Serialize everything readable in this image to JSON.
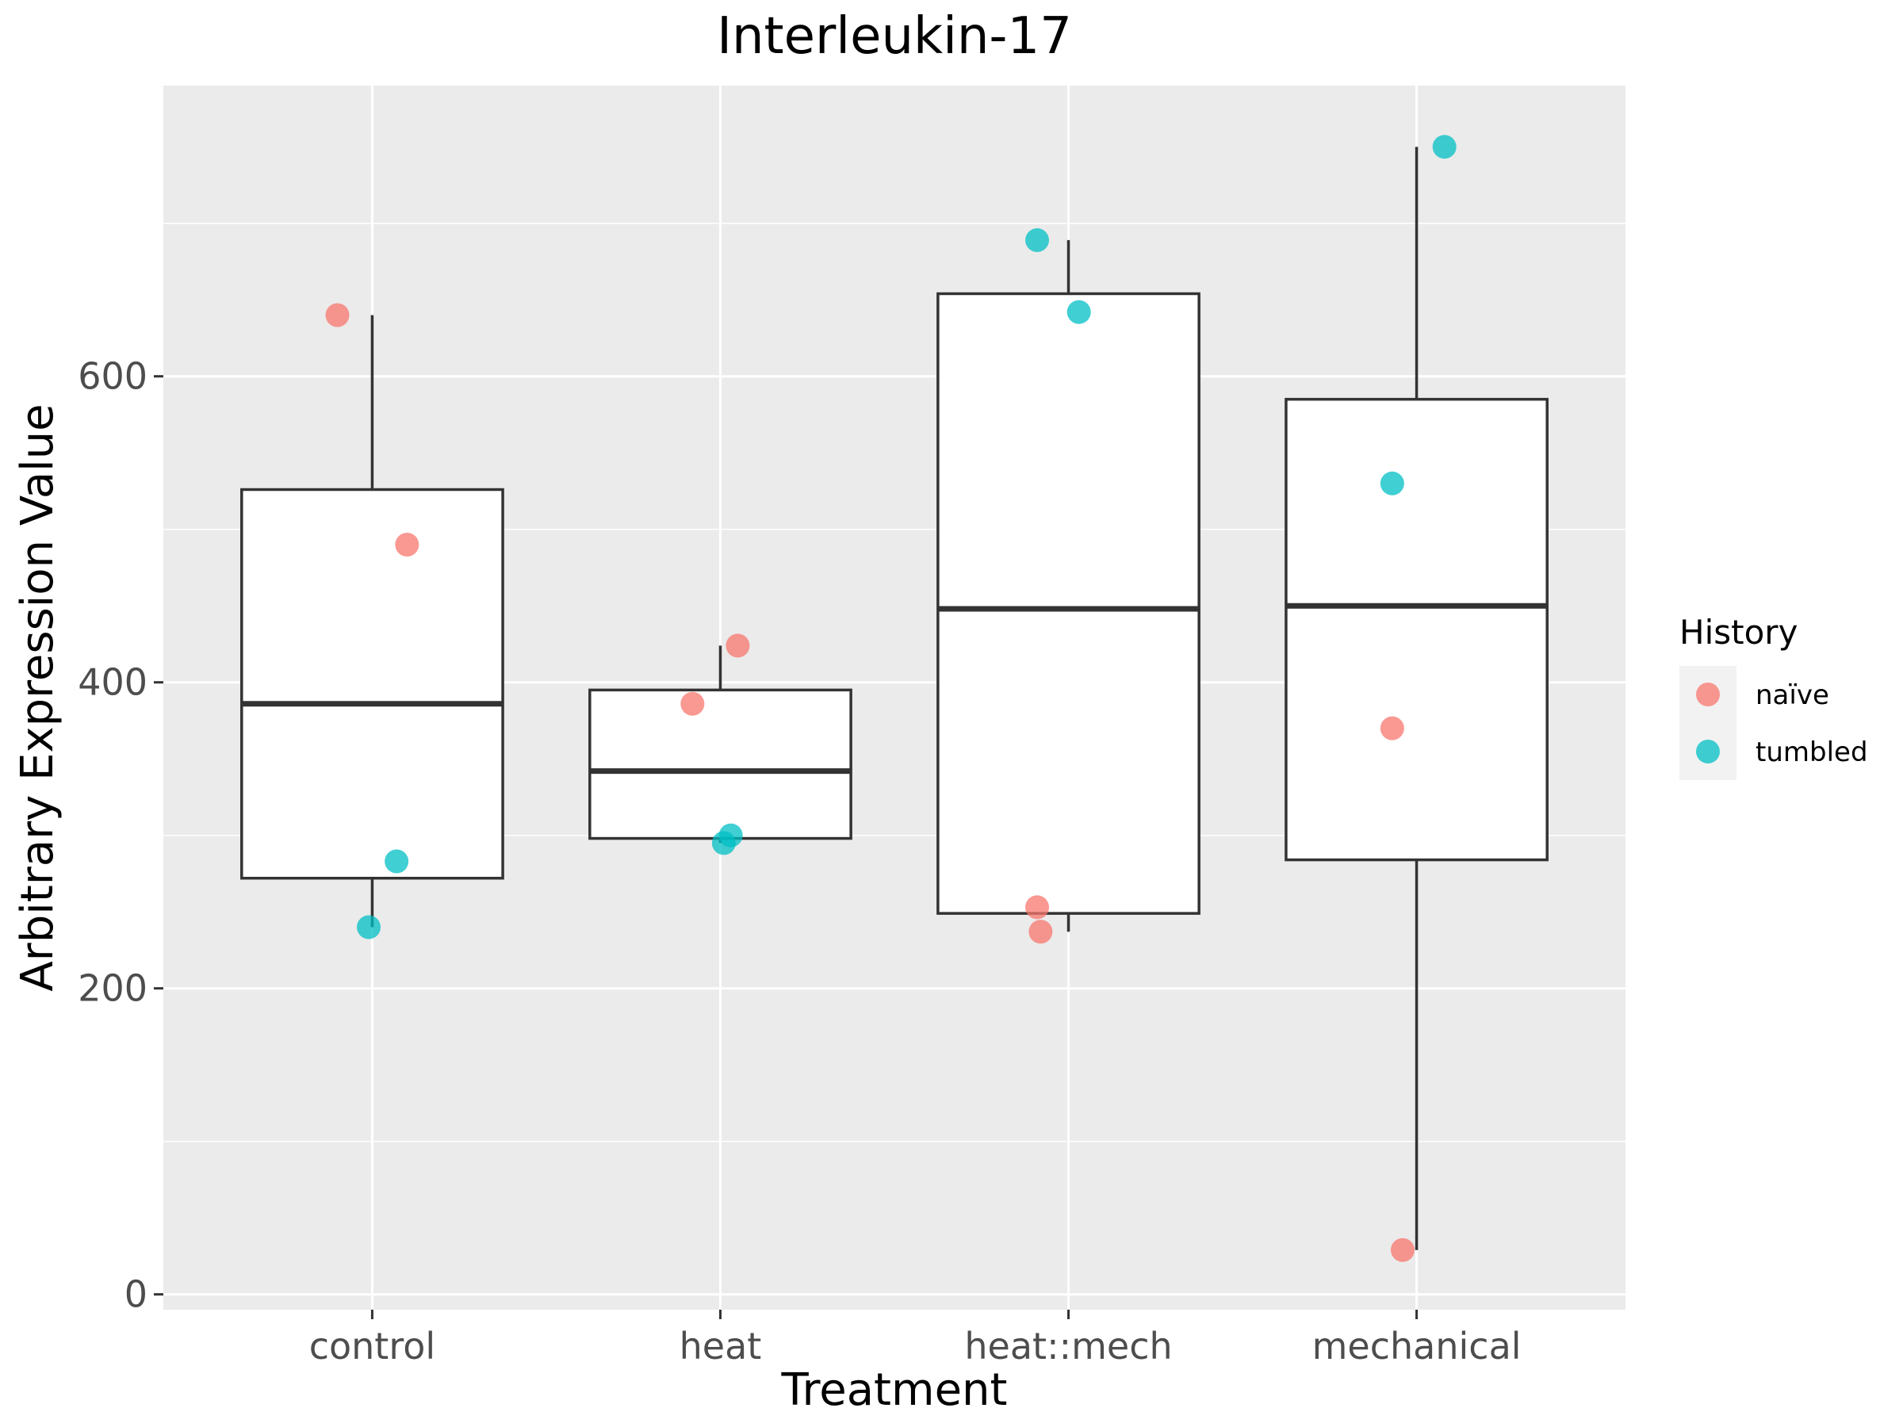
{
  "chart_data": {
    "type": "boxplot",
    "title": "Interleukin-17",
    "xlabel": "Treatment",
    "ylabel": "Arbitrary Expression Value",
    "categories": [
      "control",
      "heat",
      "heat::mech",
      "mechanical"
    ],
    "ylim": [
      -10,
      790
    ],
    "yticks": [
      0,
      200,
      400,
      600
    ],
    "grid": true,
    "legend": {
      "title": "History",
      "position": "right",
      "entries": [
        {
          "label": "naïve",
          "color": "#F8766D"
        },
        {
          "label": "tumbled",
          "color": "#00BFC4"
        }
      ]
    },
    "boxes": [
      {
        "category": "control",
        "lower_whisker": 240,
        "q1": 272,
        "median": 386,
        "q3": 526,
        "upper_whisker": 640
      },
      {
        "category": "heat",
        "lower_whisker": 295,
        "q1": 298,
        "median": 342,
        "q3": 395,
        "upper_whisker": 424
      },
      {
        "category": "heat::mech",
        "lower_whisker": 237,
        "q1": 249,
        "median": 448,
        "q3": 654,
        "upper_whisker": 689
      },
      {
        "category": "mechanical",
        "lower_whisker": 29,
        "q1": 284,
        "median": 450,
        "q3": 585,
        "upper_whisker": 750
      }
    ],
    "points": [
      {
        "category": "control",
        "history": "naïve",
        "y": 640,
        "jitter": -0.1
      },
      {
        "category": "control",
        "history": "naïve",
        "y": 490,
        "jitter": 0.1
      },
      {
        "category": "control",
        "history": "tumbled",
        "y": 283,
        "jitter": 0.07
      },
      {
        "category": "control",
        "history": "tumbled",
        "y": 240,
        "jitter": -0.01
      },
      {
        "category": "heat",
        "history": "naïve",
        "y": 424,
        "jitter": 0.05
      },
      {
        "category": "heat",
        "history": "naïve",
        "y": 386,
        "jitter": -0.08
      },
      {
        "category": "heat",
        "history": "tumbled",
        "y": 300,
        "jitter": 0.03
      },
      {
        "category": "heat",
        "history": "tumbled",
        "y": 295,
        "jitter": 0.01
      },
      {
        "category": "heat::mech",
        "history": "tumbled",
        "y": 689,
        "jitter": -0.09
      },
      {
        "category": "heat::mech",
        "history": "tumbled",
        "y": 642,
        "jitter": 0.03
      },
      {
        "category": "heat::mech",
        "history": "naïve",
        "y": 253,
        "jitter": -0.09
      },
      {
        "category": "heat::mech",
        "history": "naïve",
        "y": 237,
        "jitter": -0.08
      },
      {
        "category": "mechanical",
        "history": "tumbled",
        "y": 750,
        "jitter": 0.08
      },
      {
        "category": "mechanical",
        "history": "tumbled",
        "y": 530,
        "jitter": -0.07
      },
      {
        "category": "mechanical",
        "history": "naïve",
        "y": 370,
        "jitter": -0.07
      },
      {
        "category": "mechanical",
        "history": "naïve",
        "y": 29,
        "jitter": -0.04
      }
    ]
  }
}
